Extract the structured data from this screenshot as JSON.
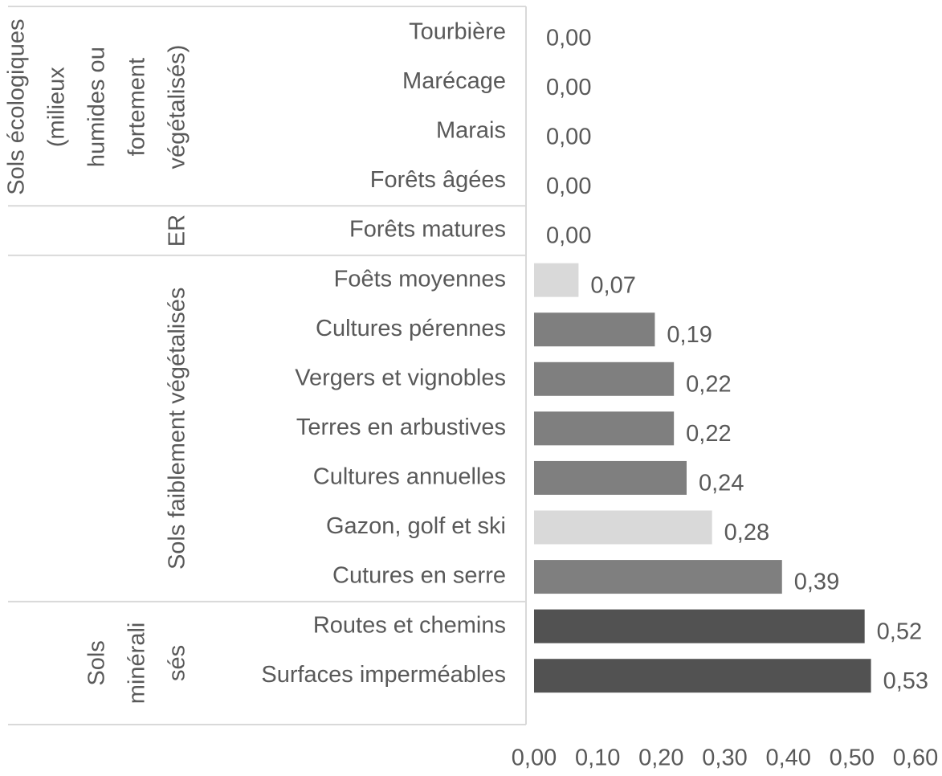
{
  "chart_data": {
    "type": "bar",
    "orientation": "horizontal",
    "categories": [
      "Tourbière",
      "Marécage",
      "Marais",
      "Forêts âgées",
      "Forêts matures",
      "Foêts moyennes",
      "Cultures pérennes",
      "Vergers et vignobles",
      "Terres en arbustives",
      "Cultures annuelles",
      "Gazon, golf et ski",
      "Cutures en serre",
      "Routes et chemins",
      "Surfaces imperméables"
    ],
    "values": [
      0,
      0,
      0,
      0,
      0,
      0.07,
      0.19,
      0.22,
      0.22,
      0.24,
      0.28,
      0.39,
      0.52,
      0.53
    ],
    "value_labels": [
      "0,00",
      "0,00",
      "0,00",
      "0,00",
      "0,00",
      "0,07",
      "0,19",
      "0,22",
      "0,22",
      "0,24",
      "0,28",
      "0,39",
      "0,52",
      "0,53"
    ],
    "colors": [
      "#7f7f7f",
      "#7f7f7f",
      "#7f7f7f",
      "#7f7f7f",
      "#7f7f7f",
      "#d9d9d9",
      "#7f7f7f",
      "#7f7f7f",
      "#7f7f7f",
      "#7f7f7f",
      "#d9d9d9",
      "#7f7f7f",
      "#525252",
      "#525252"
    ],
    "groups": [
      {
        "lines": [
          "Sols écologiques",
          "(milieux",
          "humides ou",
          "fortement",
          "végétalisés)"
        ],
        "span": 4
      },
      {
        "lines": [
          "ER"
        ],
        "span": 1
      },
      {
        "lines": [
          "Sols faiblement végétalisés"
        ],
        "span": 7
      },
      {
        "lines": [
          "Sols",
          "minérali",
          "sés"
        ],
        "span": 2
      }
    ],
    "xlim": [
      0,
      0.6
    ],
    "xticks": [
      {
        "value": 0,
        "label": "0,00"
      },
      {
        "value": 0.1,
        "label": "0,10"
      },
      {
        "value": 0.2,
        "label": "0,20"
      },
      {
        "value": 0.3,
        "label": "0,30"
      },
      {
        "value": 0.4,
        "label": "0,40"
      },
      {
        "value": 0.5,
        "label": "0,50"
      },
      {
        "value": 0.6,
        "label": "0,60"
      }
    ],
    "grid": false
  }
}
